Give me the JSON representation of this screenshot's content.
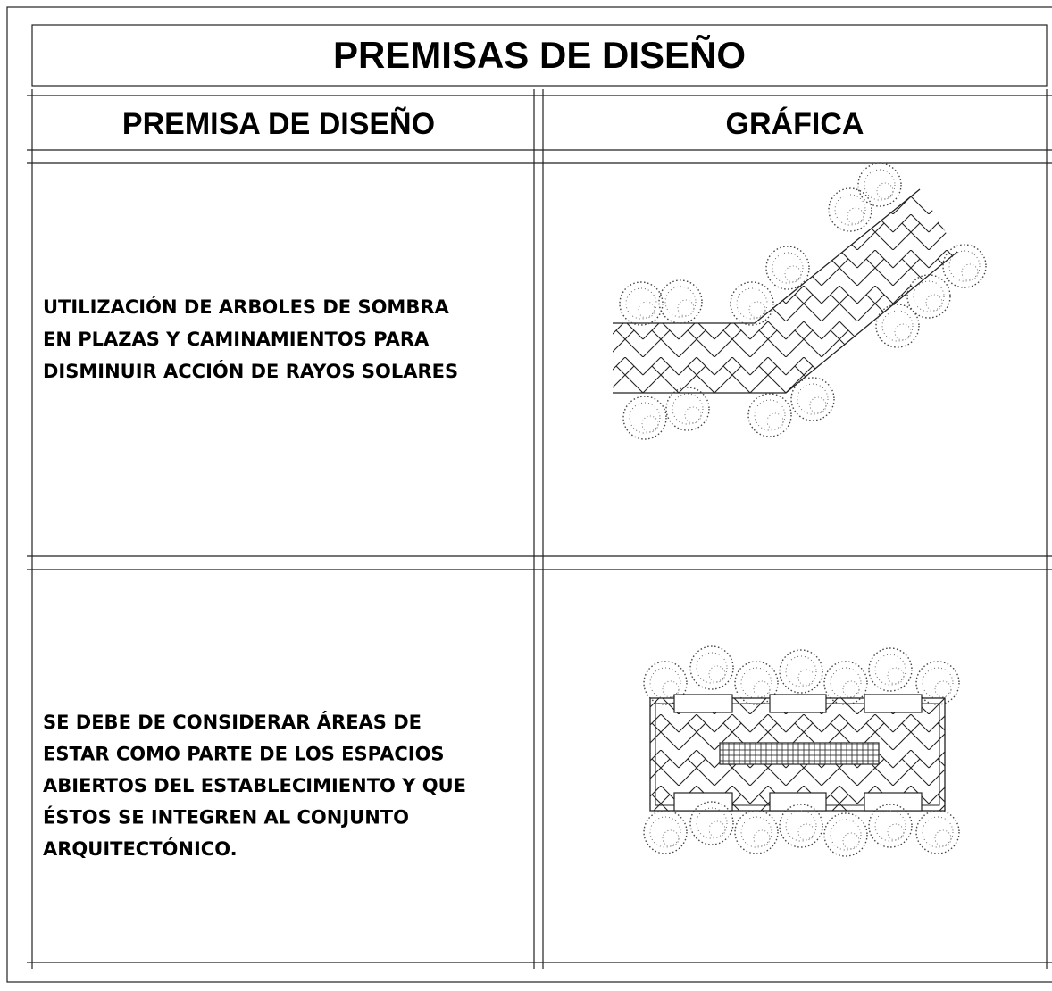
{
  "header": {
    "title": "PREMISAS DE DISEÑO"
  },
  "table": {
    "columns": [
      "PREMISA DE DISEÑO",
      "GRÁFICA"
    ],
    "rows": [
      {
        "text": [
          "UTILIZACIÓN DE ARBOLES DE SOMBRA",
          "EN PLAZAS Y CAMINAMIENTOS PARA",
          "DISMINUIR ACCIÓN DE RAYOS SOLARES"
        ]
      },
      {
        "text": [
          "SE DEBE DE CONSIDERAR ÁREAS DE",
          "ESTAR COMO PARTE DE LOS ESPACIOS",
          "ABIERTOS DEL ESTABLECIMIENTO Y QUE",
          "ÉSTOS SE INTEGREN AL CONJUNTO",
          "ARQUITECTÓNICO."
        ]
      }
    ]
  }
}
